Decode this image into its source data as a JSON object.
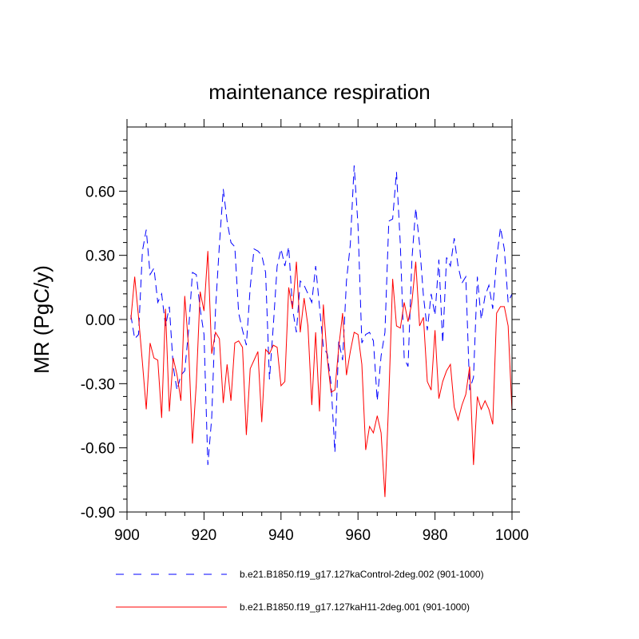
{
  "chart_data": {
    "type": "line",
    "title": "maintenance respiration",
    "xlabel": "",
    "ylabel": "MR  (PgC/y)",
    "xlim": [
      900,
      1000
    ],
    "ylim": [
      -0.9,
      0.9
    ],
    "x_ticks": [
      900,
      920,
      940,
      960,
      980,
      1000
    ],
    "x_tick_labels": [
      "900",
      "920",
      "940",
      "960",
      "980",
      "1000"
    ],
    "y_ticks": [
      -0.9,
      -0.6,
      -0.3,
      0.0,
      0.3,
      0.6
    ],
    "y_tick_labels": [
      "-0.90",
      "-0.60",
      "-0.30",
      "0.00",
      "0.30",
      "0.60"
    ],
    "legend_position": "bottom",
    "series": [
      {
        "name": "b.e21.B1850.f19_g17.127kaControl-2deg.002 (901-1000)",
        "color": "#0000ff",
        "style": "dashed",
        "x": [
          901,
          902,
          903,
          904,
          905,
          906,
          907,
          908,
          909,
          910,
          911,
          912,
          913,
          914,
          915,
          916,
          917,
          918,
          919,
          920,
          921,
          922,
          923,
          924,
          925,
          926,
          927,
          928,
          929,
          930,
          931,
          932,
          933,
          934,
          935,
          936,
          937,
          938,
          939,
          940,
          941,
          942,
          943,
          944,
          945,
          946,
          947,
          948,
          949,
          950,
          951,
          952,
          953,
          954,
          955,
          956,
          957,
          958,
          959,
          960,
          961,
          962,
          963,
          964,
          965,
          966,
          967,
          968,
          969,
          970,
          971,
          972,
          973,
          974,
          975,
          976,
          977,
          978,
          979,
          980,
          981,
          982,
          983,
          984,
          985,
          986,
          987,
          988,
          989,
          990,
          991,
          992,
          993,
          994,
          995,
          996,
          997,
          998,
          999,
          1000
        ],
        "values": [
          0.02,
          -0.09,
          -0.07,
          0.32,
          0.42,
          0.21,
          0.24,
          0.08,
          0.12,
          -0.03,
          0.06,
          -0.22,
          -0.33,
          -0.26,
          -0.24,
          -0.05,
          0.22,
          0.21,
          0.05,
          -0.07,
          -0.68,
          -0.46,
          0.05,
          0.35,
          0.61,
          0.46,
          0.36,
          0.34,
          0.03,
          -0.05,
          -0.12,
          0.15,
          0.33,
          0.32,
          0.3,
          0.22,
          -0.28,
          -0.03,
          0.25,
          0.33,
          0.25,
          0.34,
          0.05,
          -0.06,
          0.18,
          0.16,
          0.12,
          0.08,
          0.25,
          0.06,
          -0.13,
          -0.16,
          -0.3,
          -0.62,
          -0.1,
          -0.19,
          0.18,
          0.35,
          0.72,
          0.44,
          -0.11,
          -0.07,
          -0.06,
          -0.1,
          -0.38,
          -0.17,
          -0.06,
          0.46,
          0.47,
          0.69,
          0.35,
          -0.18,
          -0.22,
          0.28,
          0.52,
          0.35,
          0.11,
          -0.05,
          0.12,
          0.02,
          0.28,
          -0.11,
          0.29,
          0.25,
          0.38,
          0.25,
          0.17,
          0.2,
          -0.33,
          -0.27,
          0.2,
          0.0,
          0.11,
          0.16,
          0.05,
          0.28,
          0.43,
          0.33,
          0.08,
          0.12
        ]
      },
      {
        "name": "b.e21.B1850.f19_g17.127kaH11-2deg.001 (901-1000)",
        "color": "#ff0000",
        "style": "solid",
        "x": [
          901,
          902,
          903,
          904,
          905,
          906,
          907,
          908,
          909,
          910,
          911,
          912,
          913,
          914,
          915,
          916,
          917,
          918,
          919,
          920,
          921,
          922,
          923,
          924,
          925,
          926,
          927,
          928,
          929,
          930,
          931,
          932,
          933,
          934,
          935,
          936,
          937,
          938,
          939,
          940,
          941,
          942,
          943,
          944,
          945,
          946,
          947,
          948,
          949,
          950,
          951,
          952,
          953,
          954,
          955,
          956,
          957,
          958,
          959,
          960,
          961,
          962,
          963,
          964,
          965,
          966,
          967,
          968,
          969,
          970,
          971,
          972,
          973,
          974,
          975,
          976,
          977,
          978,
          979,
          980,
          981,
          982,
          983,
          984,
          985,
          986,
          987,
          988,
          989,
          990,
          991,
          992,
          993,
          994,
          995,
          996,
          997,
          998,
          999,
          1000
        ],
        "values": [
          0.0,
          0.2,
          0.01,
          -0.2,
          -0.42,
          -0.11,
          -0.18,
          -0.19,
          -0.46,
          0.05,
          -0.43,
          -0.18,
          -0.26,
          -0.38,
          0.11,
          -0.13,
          -0.58,
          -0.3,
          0.13,
          0.04,
          0.32,
          -0.16,
          -0.06,
          -0.09,
          -0.39,
          -0.21,
          -0.38,
          -0.11,
          -0.1,
          -0.13,
          -0.54,
          -0.23,
          -0.19,
          -0.15,
          -0.48,
          -0.14,
          -0.16,
          -0.12,
          -0.13,
          -0.31,
          -0.29,
          0.15,
          0.05,
          0.27,
          -0.06,
          0.1,
          -0.03,
          -0.4,
          -0.06,
          -0.43,
          0.07,
          -0.18,
          -0.34,
          -0.33,
          -0.13,
          0.03,
          -0.26,
          -0.15,
          -0.06,
          -0.07,
          -0.21,
          -0.61,
          -0.5,
          -0.53,
          -0.45,
          -0.53,
          -0.83,
          -0.37,
          0.19,
          -0.03,
          -0.04,
          0.08,
          -0.01,
          0.08,
          0.27,
          -0.03,
          0.01,
          -0.29,
          -0.33,
          -0.05,
          -0.37,
          -0.29,
          -0.24,
          -0.21,
          -0.41,
          -0.47,
          -0.4,
          -0.35,
          -0.22,
          -0.68,
          -0.36,
          -0.42,
          -0.38,
          -0.42,
          -0.49,
          0.03,
          0.06,
          0.06,
          -0.03,
          -0.43
        ]
      }
    ]
  }
}
